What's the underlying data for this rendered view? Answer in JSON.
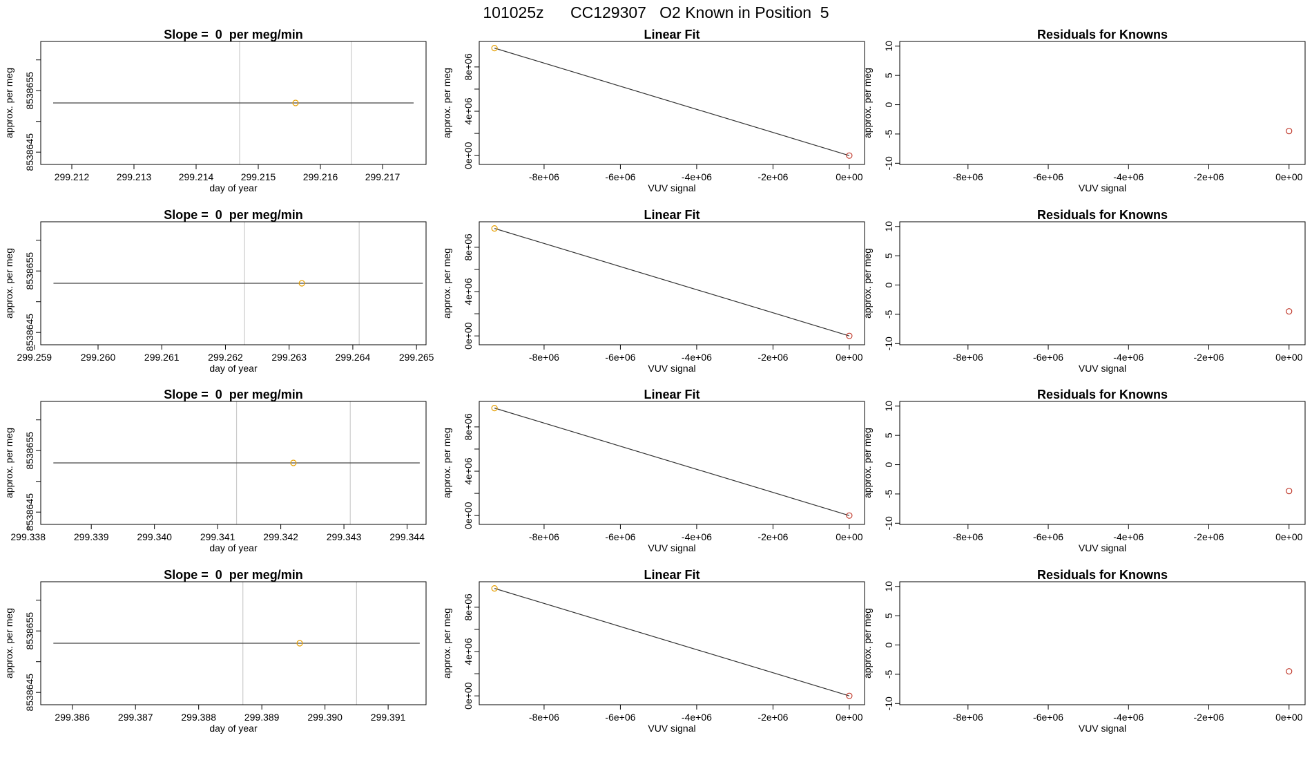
{
  "figure": {
    "title": "101025z      CC129307   O2 Known in Position  5"
  },
  "colors": {
    "axis": "#000000",
    "fit_line": "#333333",
    "grid_vline": "#cccccc",
    "point_orange": "#e69f00",
    "point_red": "#c0392b"
  },
  "chart_data": [
    {
      "row": 1,
      "slope": {
        "type": "scatter",
        "title": "Slope =  0  per meg/min",
        "xlabel": "day of year",
        "ylabel": "approx. per meg",
        "xlim": [
          299.2115,
          299.2177
        ],
        "ylim": [
          8538643,
          8538663
        ],
        "xticks": [
          "299.212",
          "299.213",
          "299.214",
          "299.215",
          "299.216",
          "299.217"
        ],
        "xtick_values": [
          299.212,
          299.213,
          299.214,
          299.215,
          299.216,
          299.217
        ],
        "yticks": [
          "8538645",
          "8538655"
        ],
        "ytick_values": [
          8538645,
          8538650,
          8538655,
          8538660
        ],
        "yticks_labeled": [
          8538645,
          8538655
        ],
        "vlines": [
          299.2147,
          299.2165
        ],
        "line": {
          "x": [
            299.2117,
            299.2175
          ],
          "y": [
            8538653,
            8538653
          ]
        },
        "points": [
          {
            "x": 299.2156,
            "y": 8538653
          }
        ]
      },
      "fit": {
        "type": "line",
        "title": "Linear Fit",
        "xlabel": "VUV signal",
        "ylabel": "approx. per meg",
        "xlim": [
          -9700000,
          400000
        ],
        "ylim": [
          -800000,
          10300000
        ],
        "xticks": [
          "-8e+06",
          "-6e+06",
          "-4e+06",
          "-2e+06",
          "0e+00"
        ],
        "xtick_values": [
          -8000000,
          -6000000,
          -4000000,
          -2000000,
          0
        ],
        "yticks": [
          "0e+00",
          "4e+06",
          "8e+06"
        ],
        "ytick_values": [
          0,
          2000000,
          4000000,
          6000000,
          8000000
        ],
        "yticks_labeled": [
          0,
          4000000,
          8000000
        ],
        "line": {
          "x": [
            -9300000,
            0
          ],
          "y": [
            9700000,
            0
          ]
        },
        "points": [
          {
            "x": -9300000,
            "y": 9700000,
            "color": "orange"
          },
          {
            "x": 0,
            "y": 0,
            "color": "red"
          }
        ]
      },
      "resid": {
        "type": "scatter",
        "title": "Residuals for Knowns",
        "xlabel": "VUV signal",
        "ylabel": "approx. per meg",
        "xlim": [
          -9700000,
          400000
        ],
        "ylim": [
          -10.2,
          10.8
        ],
        "xticks": [
          "-8e+06",
          "-6e+06",
          "-4e+06",
          "-2e+06",
          "0e+00"
        ],
        "xtick_values": [
          -8000000,
          -6000000,
          -4000000,
          -2000000,
          0
        ],
        "yticks": [
          "-10",
          "-5",
          "0",
          "5",
          "10"
        ],
        "ytick_values": [
          -10,
          -5,
          0,
          5,
          10
        ],
        "yticks_labeled": [
          -10,
          -5,
          0,
          5,
          10
        ],
        "points": [
          {
            "x": 0,
            "y": -4.5
          }
        ]
      }
    },
    {
      "row": 2,
      "slope": {
        "type": "scatter",
        "title": "Slope =  0  per meg/min",
        "xlabel": "day of year",
        "ylabel": "approx. per meg",
        "xlim": [
          299.2591,
          299.26515
        ],
        "ylim": [
          8538643,
          8538663
        ],
        "xticks": [
          "299.259",
          "299.260",
          "299.261",
          "299.262",
          "299.263",
          "299.264",
          "299.265"
        ],
        "xtick_values": [
          299.259,
          299.26,
          299.261,
          299.262,
          299.263,
          299.264,
          299.265
        ],
        "yticks": [
          "8538645",
          "8538655"
        ],
        "ytick_values": [
          8538645,
          8538650,
          8538655,
          8538660
        ],
        "yticks_labeled": [
          8538645,
          8538655
        ],
        "vlines": [
          299.2623,
          299.2641
        ],
        "line": {
          "x": [
            299.2593,
            299.2651
          ],
          "y": [
            8538653,
            8538653
          ]
        },
        "points": [
          {
            "x": 299.2632,
            "y": 8538653
          }
        ]
      },
      "fit": {
        "type": "line",
        "title": "Linear Fit",
        "xlabel": "VUV signal",
        "ylabel": "approx. per meg",
        "xlim": [
          -9700000,
          400000
        ],
        "ylim": [
          -800000,
          10300000
        ],
        "xticks": [
          "-8e+06",
          "-6e+06",
          "-4e+06",
          "-2e+06",
          "0e+00"
        ],
        "xtick_values": [
          -8000000,
          -6000000,
          -4000000,
          -2000000,
          0
        ],
        "yticks": [
          "0e+00",
          "4e+06",
          "8e+06"
        ],
        "ytick_values": [
          0,
          2000000,
          4000000,
          6000000,
          8000000
        ],
        "yticks_labeled": [
          0,
          4000000,
          8000000
        ],
        "line": {
          "x": [
            -9300000,
            0
          ],
          "y": [
            9700000,
            0
          ]
        },
        "points": [
          {
            "x": -9300000,
            "y": 9700000,
            "color": "orange"
          },
          {
            "x": 0,
            "y": 0,
            "color": "red"
          }
        ]
      },
      "resid": {
        "type": "scatter",
        "title": "Residuals for Knowns",
        "xlabel": "VUV signal",
        "ylabel": "approx. per meg",
        "xlim": [
          -9700000,
          400000
        ],
        "ylim": [
          -10.2,
          10.8
        ],
        "xticks": [
          "-8e+06",
          "-6e+06",
          "-4e+06",
          "-2e+06",
          "0e+00"
        ],
        "xtick_values": [
          -8000000,
          -6000000,
          -4000000,
          -2000000,
          0
        ],
        "yticks": [
          "-10",
          "-5",
          "0",
          "5",
          "10"
        ],
        "ytick_values": [
          -10,
          -5,
          0,
          5,
          10
        ],
        "yticks_labeled": [
          -10,
          -5,
          0,
          5,
          10
        ],
        "points": [
          {
            "x": 0,
            "y": -4.5
          }
        ]
      }
    },
    {
      "row": 3,
      "slope": {
        "type": "scatter",
        "title": "Slope =  0  per meg/min",
        "xlabel": "day of year",
        "ylabel": "approx. per meg",
        "xlim": [
          299.3382,
          299.3443
        ],
        "ylim": [
          8538643,
          8538663
        ],
        "xticks": [
          "299.338",
          "299.339",
          "299.340",
          "299.341",
          "299.342",
          "299.343",
          "299.344"
        ],
        "xtick_values": [
          299.338,
          299.339,
          299.34,
          299.341,
          299.342,
          299.343,
          299.344
        ],
        "yticks": [
          "8538645",
          "8538655"
        ],
        "ytick_values": [
          8538645,
          8538650,
          8538655,
          8538660
        ],
        "yticks_labeled": [
          8538645,
          8538655
        ],
        "vlines": [
          299.3413,
          299.3431
        ],
        "line": {
          "x": [
            299.3384,
            299.3442
          ],
          "y": [
            8538653,
            8538653
          ]
        },
        "points": [
          {
            "x": 299.3422,
            "y": 8538653
          }
        ]
      },
      "fit": {
        "type": "line",
        "title": "Linear Fit",
        "xlabel": "VUV signal",
        "ylabel": "approx. per meg",
        "xlim": [
          -9700000,
          400000
        ],
        "ylim": [
          -800000,
          10300000
        ],
        "xticks": [
          "-8e+06",
          "-6e+06",
          "-4e+06",
          "-2e+06",
          "0e+00"
        ],
        "xtick_values": [
          -8000000,
          -6000000,
          -4000000,
          -2000000,
          0
        ],
        "yticks": [
          "0e+00",
          "4e+06",
          "8e+06"
        ],
        "ytick_values": [
          0,
          2000000,
          4000000,
          6000000,
          8000000
        ],
        "yticks_labeled": [
          0,
          4000000,
          8000000
        ],
        "line": {
          "x": [
            -9300000,
            0
          ],
          "y": [
            9700000,
            0
          ]
        },
        "points": [
          {
            "x": -9300000,
            "y": 9700000,
            "color": "orange"
          },
          {
            "x": 0,
            "y": 0,
            "color": "red"
          }
        ]
      },
      "resid": {
        "type": "scatter",
        "title": "Residuals for Knowns",
        "xlabel": "VUV signal",
        "ylabel": "approx. per meg",
        "xlim": [
          -9700000,
          400000
        ],
        "ylim": [
          -10.2,
          10.8
        ],
        "xticks": [
          "-8e+06",
          "-6e+06",
          "-4e+06",
          "-2e+06",
          "0e+00"
        ],
        "xtick_values": [
          -8000000,
          -6000000,
          -4000000,
          -2000000,
          0
        ],
        "yticks": [
          "-10",
          "-5",
          "0",
          "5",
          "10"
        ],
        "ytick_values": [
          -10,
          -5,
          0,
          5,
          10
        ],
        "yticks_labeled": [
          -10,
          -5,
          0,
          5,
          10
        ],
        "points": [
          {
            "x": 0,
            "y": -4.5
          }
        ]
      }
    },
    {
      "row": 4,
      "slope": {
        "type": "scatter",
        "title": "Slope =  0  per meg/min",
        "xlabel": "day of year",
        "ylabel": "approx. per meg",
        "xlim": [
          299.3855,
          299.3916
        ],
        "ylim": [
          8538643,
          8538663
        ],
        "xticks": [
          "299.386",
          "299.387",
          "299.388",
          "299.389",
          "299.390",
          "299.391"
        ],
        "xtick_values": [
          299.386,
          299.387,
          299.388,
          299.389,
          299.39,
          299.391
        ],
        "yticks": [
          "8538645",
          "8538655"
        ],
        "ytick_values": [
          8538645,
          8538650,
          8538655,
          8538660
        ],
        "yticks_labeled": [
          8538645,
          8538655
        ],
        "vlines": [
          299.3887,
          299.3905
        ],
        "line": {
          "x": [
            299.3857,
            299.3915
          ],
          "y": [
            8538653,
            8538653
          ]
        },
        "points": [
          {
            "x": 299.3896,
            "y": 8538653
          }
        ]
      },
      "fit": {
        "type": "line",
        "title": "Linear Fit",
        "xlabel": "VUV signal",
        "ylabel": "approx. per meg",
        "xlim": [
          -9700000,
          400000
        ],
        "ylim": [
          -800000,
          10300000
        ],
        "xticks": [
          "-8e+06",
          "-6e+06",
          "-4e+06",
          "-2e+06",
          "0e+00"
        ],
        "xtick_values": [
          -8000000,
          -6000000,
          -4000000,
          -2000000,
          0
        ],
        "yticks": [
          "0e+00",
          "4e+06",
          "8e+06"
        ],
        "ytick_values": [
          0,
          2000000,
          4000000,
          6000000,
          8000000
        ],
        "yticks_labeled": [
          0,
          4000000,
          8000000
        ],
        "line": {
          "x": [
            -9300000,
            0
          ],
          "y": [
            9700000,
            0
          ]
        },
        "points": [
          {
            "x": -9300000,
            "y": 9700000,
            "color": "orange"
          },
          {
            "x": 0,
            "y": 0,
            "color": "red"
          }
        ]
      },
      "resid": {
        "type": "scatter",
        "title": "Residuals for Knowns",
        "xlabel": "VUV signal",
        "ylabel": "approx. per meg",
        "xlim": [
          -9700000,
          400000
        ],
        "ylim": [
          -10.2,
          10.8
        ],
        "xticks": [
          "-8e+06",
          "-6e+06",
          "-4e+06",
          "-2e+06",
          "0e+00"
        ],
        "xtick_values": [
          -8000000,
          -6000000,
          -4000000,
          -2000000,
          0
        ],
        "yticks": [
          "-10",
          "-5",
          "0",
          "5",
          "10"
        ],
        "ytick_values": [
          -10,
          -5,
          0,
          5,
          10
        ],
        "yticks_labeled": [
          -10,
          -5,
          0,
          5,
          10
        ],
        "points": [
          {
            "x": 0,
            "y": -4.5
          }
        ]
      }
    }
  ]
}
